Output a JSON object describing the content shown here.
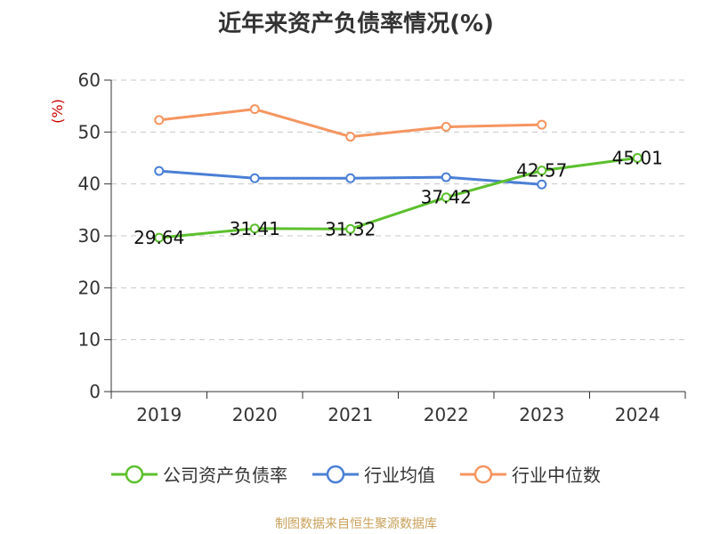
{
  "title": "近年来资产负债率情况(%)",
  "source": "制图数据来自恒生聚源数据库",
  "chart_data": {
    "type": "line",
    "categories": [
      "2019",
      "2020",
      "2021",
      "2022",
      "2023",
      "2024"
    ],
    "ylabel": "(%)",
    "xlabel": "",
    "ylim": [
      0,
      60
    ],
    "yticks": [
      0,
      10,
      20,
      30,
      40,
      50,
      60
    ],
    "grid": true,
    "legend_position": "bottom",
    "series": [
      {
        "name": "公司资产负债率",
        "color": "#5cc02e",
        "values": [
          29.64,
          31.41,
          31.32,
          37.42,
          42.57,
          45.01
        ],
        "labels": [
          "29.64",
          "31.41",
          "31.32",
          "37.42",
          "42.57",
          "45.01"
        ]
      },
      {
        "name": "行业均值",
        "color": "#4a7fd6",
        "values": [
          42.5,
          41.1,
          41.1,
          41.3,
          39.9,
          null
        ]
      },
      {
        "name": "行业中位数",
        "color": "#f59560",
        "values": [
          52.3,
          54.4,
          49.1,
          51.0,
          51.4,
          null
        ]
      }
    ]
  }
}
